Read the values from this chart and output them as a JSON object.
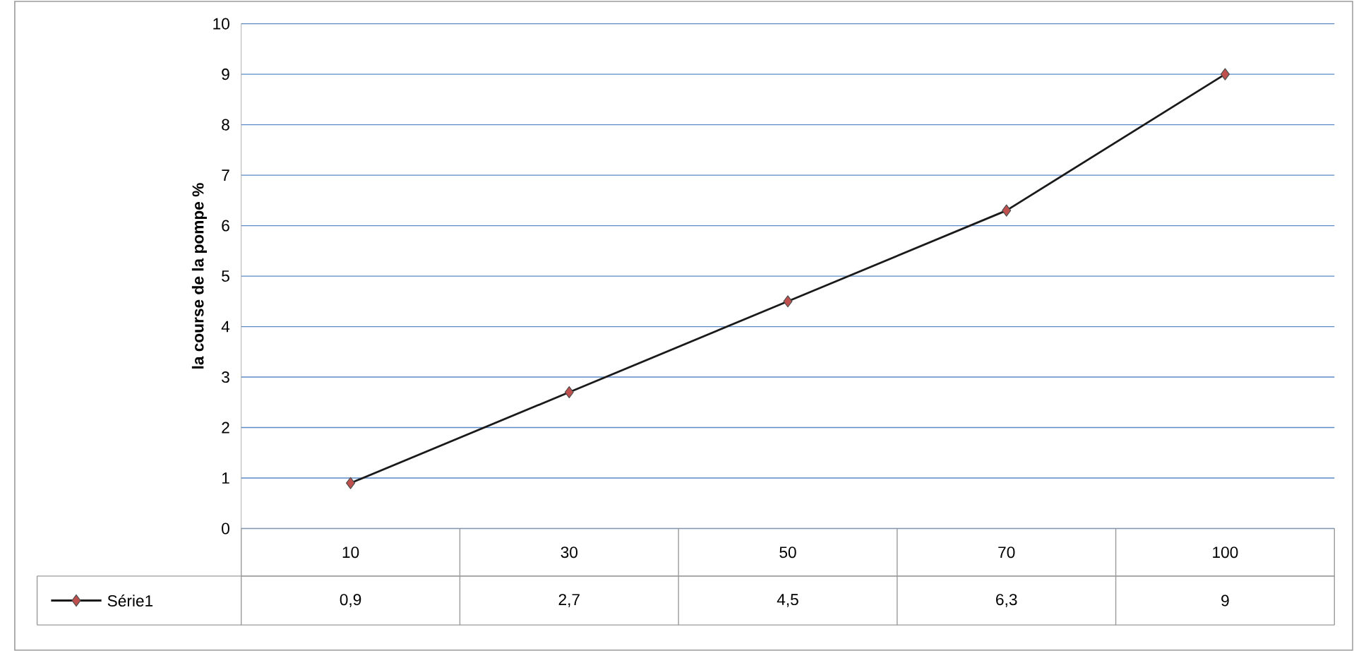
{
  "chart_data": {
    "type": "line",
    "ylabel": "la course de la pompe %",
    "categories": [
      "10",
      "30",
      "50",
      "70",
      "100"
    ],
    "series": [
      {
        "name": "Série1",
        "color": "#1a1a1a",
        "values": [
          0.9,
          2.7,
          4.5,
          6.3,
          9
        ],
        "value_labels": [
          "0,9",
          "2,7",
          "4,5",
          "6,3",
          "9"
        ]
      }
    ],
    "ylim": [
      0,
      10
    ],
    "yticks": [
      0,
      1,
      2,
      3,
      4,
      5,
      6,
      7,
      8,
      9,
      10
    ],
    "grid": "y",
    "marker": "diamond",
    "line_style": "solid",
    "legend": "bottom left"
  }
}
